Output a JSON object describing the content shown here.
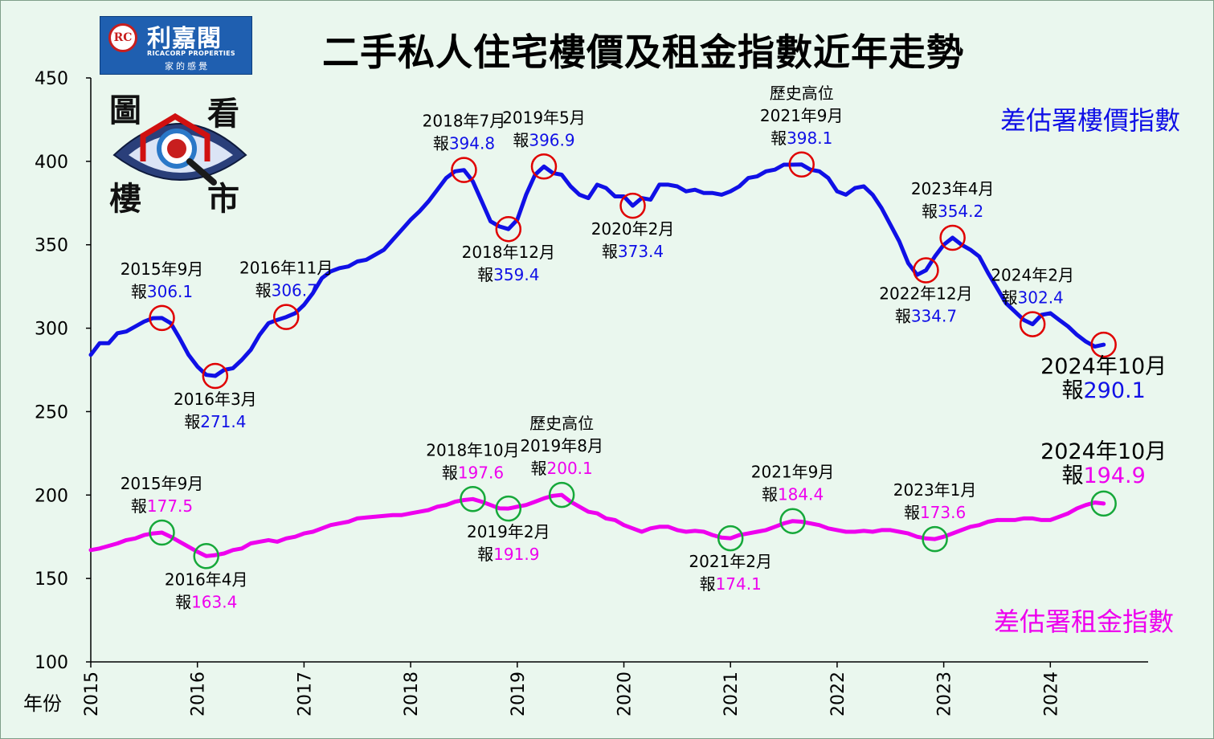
{
  "header": {
    "title": "二手私人住宅樓價及租金指數近年走勢",
    "logo_name": "利嘉閣",
    "logo_english": "RICACORP PROPERTIES",
    "logo_tagline": "家的感覺",
    "logo_mark": "RC",
    "badge_chars": [
      "圖",
      "看",
      "樓",
      "市"
    ]
  },
  "colors": {
    "price": "#1010e6",
    "rent": "#ee00ee",
    "price_marker": "#e00000",
    "rent_marker": "#16a83a",
    "background": "#eaf7ee"
  },
  "chart_data": {
    "type": "line",
    "xlabel": "年份",
    "ylabel": "",
    "ylim": [
      100,
      450
    ],
    "yticks": [
      100,
      150,
      200,
      250,
      300,
      350,
      400,
      450
    ],
    "xlim": [
      2015.0,
      2024.917
    ],
    "xticks": [
      "2015",
      "2016",
      "2017",
      "2018",
      "2019",
      "2020",
      "2021",
      "2022",
      "2023",
      "2024"
    ],
    "grid": false,
    "series": [
      {
        "name": "差估署樓價指數",
        "color": "#1010e6",
        "points": [
          [
            2015.0,
            284
          ],
          [
            2015.083,
            291
          ],
          [
            2015.167,
            291
          ],
          [
            2015.25,
            297
          ],
          [
            2015.333,
            298
          ],
          [
            2015.417,
            301
          ],
          [
            2015.5,
            304
          ],
          [
            2015.583,
            306
          ],
          [
            2015.667,
            306.1
          ],
          [
            2015.75,
            303
          ],
          [
            2015.833,
            294
          ],
          [
            2015.917,
            284
          ],
          [
            2016.0,
            277
          ],
          [
            2016.083,
            272
          ],
          [
            2016.167,
            271.4
          ],
          [
            2016.25,
            275
          ],
          [
            2016.333,
            276
          ],
          [
            2016.417,
            281
          ],
          [
            2016.5,
            287
          ],
          [
            2016.583,
            296
          ],
          [
            2016.667,
            303
          ],
          [
            2016.75,
            305
          ],
          [
            2016.833,
            306.7
          ],
          [
            2016.917,
            309
          ],
          [
            2017.0,
            314
          ],
          [
            2017.083,
            321
          ],
          [
            2017.167,
            330
          ],
          [
            2017.25,
            334
          ],
          [
            2017.333,
            336
          ],
          [
            2017.417,
            337
          ],
          [
            2017.5,
            340
          ],
          [
            2017.583,
            341
          ],
          [
            2017.667,
            344
          ],
          [
            2017.75,
            347
          ],
          [
            2017.833,
            353
          ],
          [
            2017.917,
            359
          ],
          [
            2018.0,
            365
          ],
          [
            2018.083,
            370
          ],
          [
            2018.167,
            376
          ],
          [
            2018.25,
            383
          ],
          [
            2018.333,
            390
          ],
          [
            2018.417,
            394
          ],
          [
            2018.5,
            394.8
          ],
          [
            2018.583,
            388
          ],
          [
            2018.667,
            376
          ],
          [
            2018.75,
            364
          ],
          [
            2018.833,
            361
          ],
          [
            2018.917,
            359.4
          ],
          [
            2019.0,
            365
          ],
          [
            2019.083,
            380
          ],
          [
            2019.167,
            392
          ],
          [
            2019.25,
            396.9
          ],
          [
            2019.333,
            393
          ],
          [
            2019.417,
            392
          ],
          [
            2019.5,
            385
          ],
          [
            2019.583,
            380
          ],
          [
            2019.667,
            378
          ],
          [
            2019.75,
            386
          ],
          [
            2019.833,
            384
          ],
          [
            2019.917,
            379
          ],
          [
            2020.0,
            379
          ],
          [
            2020.083,
            373.4
          ],
          [
            2020.167,
            378
          ],
          [
            2020.25,
            377
          ],
          [
            2020.333,
            386
          ],
          [
            2020.417,
            386
          ],
          [
            2020.5,
            385
          ],
          [
            2020.583,
            382
          ],
          [
            2020.667,
            383
          ],
          [
            2020.75,
            381
          ],
          [
            2020.833,
            381
          ],
          [
            2020.917,
            380
          ],
          [
            2021.0,
            382
          ],
          [
            2021.083,
            385
          ],
          [
            2021.167,
            390
          ],
          [
            2021.25,
            391
          ],
          [
            2021.333,
            394
          ],
          [
            2021.417,
            395
          ],
          [
            2021.5,
            398
          ],
          [
            2021.583,
            398
          ],
          [
            2021.667,
            398.1
          ],
          [
            2021.75,
            395
          ],
          [
            2021.833,
            394
          ],
          [
            2021.917,
            390
          ],
          [
            2022.0,
            382
          ],
          [
            2022.083,
            380
          ],
          [
            2022.167,
            384
          ],
          [
            2022.25,
            385
          ],
          [
            2022.333,
            380
          ],
          [
            2022.417,
            372
          ],
          [
            2022.5,
            362
          ],
          [
            2022.583,
            352
          ],
          [
            2022.667,
            339
          ],
          [
            2022.75,
            332
          ],
          [
            2022.833,
            334.7
          ],
          [
            2022.917,
            343
          ],
          [
            2023.0,
            350
          ],
          [
            2023.083,
            354.2
          ],
          [
            2023.167,
            350
          ],
          [
            2023.25,
            347
          ],
          [
            2023.333,
            343
          ],
          [
            2023.417,
            333
          ],
          [
            2023.5,
            324
          ],
          [
            2023.583,
            315
          ],
          [
            2023.667,
            310
          ],
          [
            2023.75,
            305
          ],
          [
            2023.833,
            302.4
          ],
          [
            2023.917,
            308
          ],
          [
            2024.0,
            309
          ],
          [
            2024.083,
            305
          ],
          [
            2024.167,
            301
          ],
          [
            2024.25,
            296
          ],
          [
            2024.333,
            292
          ],
          [
            2024.417,
            289
          ],
          [
            2024.5,
            290.1
          ]
        ]
      },
      {
        "name": "差估署租金指數",
        "color": "#ee00ee",
        "points": [
          [
            2015.0,
            167
          ],
          [
            2015.083,
            168
          ],
          [
            2015.167,
            169.5
          ],
          [
            2015.25,
            171
          ],
          [
            2015.333,
            173
          ],
          [
            2015.417,
            174
          ],
          [
            2015.5,
            176
          ],
          [
            2015.583,
            177
          ],
          [
            2015.667,
            177.5
          ],
          [
            2015.75,
            175
          ],
          [
            2015.833,
            172
          ],
          [
            2015.917,
            169
          ],
          [
            2016.0,
            166
          ],
          [
            2016.083,
            163.4
          ],
          [
            2016.167,
            164
          ],
          [
            2016.25,
            165
          ],
          [
            2016.333,
            167
          ],
          [
            2016.417,
            168
          ],
          [
            2016.5,
            171
          ],
          [
            2016.583,
            172
          ],
          [
            2016.667,
            173
          ],
          [
            2016.75,
            172
          ],
          [
            2016.833,
            174
          ],
          [
            2016.917,
            175
          ],
          [
            2017.0,
            177
          ],
          [
            2017.083,
            178
          ],
          [
            2017.167,
            180
          ],
          [
            2017.25,
            182
          ],
          [
            2017.333,
            183
          ],
          [
            2017.417,
            184
          ],
          [
            2017.5,
            186
          ],
          [
            2017.583,
            186.5
          ],
          [
            2017.667,
            187
          ],
          [
            2017.75,
            187.5
          ],
          [
            2017.833,
            188
          ],
          [
            2017.917,
            188
          ],
          [
            2018.0,
            189
          ],
          [
            2018.083,
            190
          ],
          [
            2018.167,
            191
          ],
          [
            2018.25,
            193
          ],
          [
            2018.333,
            194
          ],
          [
            2018.417,
            196
          ],
          [
            2018.5,
            197
          ],
          [
            2018.583,
            197.6
          ],
          [
            2018.667,
            196
          ],
          [
            2018.75,
            194
          ],
          [
            2018.833,
            192
          ],
          [
            2018.917,
            191.9
          ],
          [
            2019.0,
            193
          ],
          [
            2019.083,
            194
          ],
          [
            2019.167,
            196
          ],
          [
            2019.25,
            198
          ],
          [
            2019.333,
            199.5
          ],
          [
            2019.417,
            200.1
          ],
          [
            2019.5,
            196
          ],
          [
            2019.583,
            193
          ],
          [
            2019.667,
            190
          ],
          [
            2019.75,
            189
          ],
          [
            2019.833,
            186
          ],
          [
            2019.917,
            185
          ],
          [
            2020.0,
            182
          ],
          [
            2020.083,
            180
          ],
          [
            2020.167,
            178
          ],
          [
            2020.25,
            180
          ],
          [
            2020.333,
            181
          ],
          [
            2020.417,
            181
          ],
          [
            2020.5,
            179
          ],
          [
            2020.583,
            178
          ],
          [
            2020.667,
            178.5
          ],
          [
            2020.75,
            178
          ],
          [
            2020.833,
            176
          ],
          [
            2020.917,
            174.5
          ],
          [
            2021.0,
            174.1
          ],
          [
            2021.083,
            176
          ],
          [
            2021.167,
            177
          ],
          [
            2021.25,
            178
          ],
          [
            2021.333,
            179
          ],
          [
            2021.417,
            181
          ],
          [
            2021.5,
            183
          ],
          [
            2021.583,
            184.4
          ],
          [
            2021.667,
            184
          ],
          [
            2021.75,
            183
          ],
          [
            2021.833,
            182
          ],
          [
            2021.917,
            180
          ],
          [
            2022.0,
            179
          ],
          [
            2022.083,
            178
          ],
          [
            2022.167,
            178
          ],
          [
            2022.25,
            178.5
          ],
          [
            2022.333,
            178
          ],
          [
            2022.417,
            179
          ],
          [
            2022.5,
            179
          ],
          [
            2022.583,
            178
          ],
          [
            2022.667,
            177
          ],
          [
            2022.75,
            175
          ],
          [
            2022.833,
            174
          ],
          [
            2022.917,
            173.6
          ],
          [
            2023.0,
            175
          ],
          [
            2023.083,
            177
          ],
          [
            2023.167,
            179
          ],
          [
            2023.25,
            181
          ],
          [
            2023.333,
            182
          ],
          [
            2023.417,
            184
          ],
          [
            2023.5,
            185
          ],
          [
            2023.583,
            185
          ],
          [
            2023.667,
            185
          ],
          [
            2023.75,
            186
          ],
          [
            2023.833,
            186
          ],
          [
            2023.917,
            185
          ],
          [
            2024.0,
            185
          ],
          [
            2024.083,
            187
          ],
          [
            2024.167,
            189
          ],
          [
            2024.25,
            192
          ],
          [
            2024.333,
            194
          ],
          [
            2024.417,
            195.5
          ],
          [
            2024.5,
            194.9
          ]
        ]
      }
    ],
    "annotations": [
      {
        "series": 0,
        "x": 2015.667,
        "y": 306.1,
        "lines": [
          "2015年9月"
        ],
        "prefix": "報",
        "value": "306.1",
        "pos": "above"
      },
      {
        "series": 0,
        "x": 2016.167,
        "y": 271.4,
        "lines": [
          "2016年3月"
        ],
        "prefix": "報",
        "value": "271.4",
        "pos": "below"
      },
      {
        "series": 0,
        "x": 2016.833,
        "y": 306.7,
        "lines": [
          "2016年11月"
        ],
        "prefix": "報",
        "value": "306.7",
        "pos": "above"
      },
      {
        "series": 0,
        "x": 2018.5,
        "y": 394.8,
        "lines": [
          "2018年7月"
        ],
        "prefix": "報",
        "value": "394.8",
        "pos": "above"
      },
      {
        "series": 0,
        "x": 2018.917,
        "y": 359.4,
        "lines": [
          "2018年12月"
        ],
        "prefix": "報",
        "value": "359.4",
        "pos": "below"
      },
      {
        "series": 0,
        "x": 2019.25,
        "y": 396.9,
        "lines": [
          "2019年5月"
        ],
        "prefix": "報",
        "value": "396.9",
        "pos": "above"
      },
      {
        "series": 0,
        "x": 2020.083,
        "y": 373.4,
        "lines": [
          "2020年2月"
        ],
        "prefix": "報",
        "value": "373.4",
        "pos": "below"
      },
      {
        "series": 0,
        "x": 2021.667,
        "y": 398.1,
        "lines": [
          "歷史高位",
          "2021年9月"
        ],
        "prefix": "報",
        "value": "398.1",
        "pos": "above"
      },
      {
        "series": 0,
        "x": 2022.833,
        "y": 334.7,
        "lines": [
          "2022年12月"
        ],
        "prefix": "報",
        "value": "334.7",
        "pos": "below"
      },
      {
        "series": 0,
        "x": 2023.083,
        "y": 354.2,
        "lines": [
          "2023年4月"
        ],
        "prefix": "報",
        "value": "354.2",
        "pos": "above"
      },
      {
        "series": 0,
        "x": 2023.833,
        "y": 302.4,
        "lines": [
          "2024年2月"
        ],
        "prefix": "報",
        "value": "302.4",
        "pos": "above"
      },
      {
        "series": 0,
        "x": 2024.5,
        "y": 290.1,
        "lines": [
          "2024年10月"
        ],
        "prefix": "報",
        "value": "290.1",
        "pos": "below",
        "large": true
      },
      {
        "series": 1,
        "x": 2015.667,
        "y": 177.5,
        "lines": [
          "2015年9月"
        ],
        "prefix": "報",
        "value": "177.5",
        "pos": "above"
      },
      {
        "series": 1,
        "x": 2016.083,
        "y": 163.4,
        "lines": [
          "2016年4月"
        ],
        "prefix": "報",
        "value": "163.4",
        "pos": "below"
      },
      {
        "series": 1,
        "x": 2018.583,
        "y": 197.6,
        "lines": [
          "2018年10月"
        ],
        "prefix": "報",
        "value": "197.6",
        "pos": "above"
      },
      {
        "series": 1,
        "x": 2018.917,
        "y": 191.9,
        "lines": [
          "2019年2月"
        ],
        "prefix": "報",
        "value": "191.9",
        "pos": "below"
      },
      {
        "series": 1,
        "x": 2019.417,
        "y": 200.1,
        "lines": [
          "歷史高位",
          "2019年8月"
        ],
        "prefix": "報",
        "value": "200.1",
        "pos": "above"
      },
      {
        "series": 1,
        "x": 2021.0,
        "y": 174.1,
        "lines": [
          "2021年2月"
        ],
        "prefix": "報",
        "value": "174.1",
        "pos": "below"
      },
      {
        "series": 1,
        "x": 2021.583,
        "y": 184.4,
        "lines": [
          "2021年9月"
        ],
        "prefix": "報",
        "value": "184.4",
        "pos": "above"
      },
      {
        "series": 1,
        "x": 2022.917,
        "y": 173.6,
        "lines": [
          "2023年1月"
        ],
        "prefix": "報",
        "value": "173.6",
        "pos": "above"
      },
      {
        "series": 1,
        "x": 2024.5,
        "y": 194.9,
        "lines": [
          "2024年10月"
        ],
        "prefix": "報",
        "value": "194.9",
        "pos": "above",
        "large": true
      }
    ]
  }
}
